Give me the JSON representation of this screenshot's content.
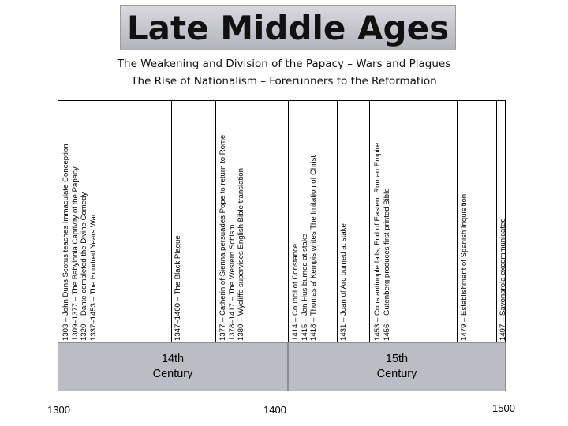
{
  "title": "Late Middle Ages",
  "subtitle": [
    "The Weakening and Division of the Papacy – Wars and Plagues",
    "The Rise of Nationalism – Forerunners to the Reformation"
  ],
  "events": [
    {
      "lines": [
        "1303 – John Duns Scotus teaches Immaculate Conception",
        "1309–1377 – The Babylonia Captivity of the Papacy",
        "1320 – Dante completed the Divine Comedy",
        "1337–1453 – The Hundred Years War"
      ]
    },
    {
      "lines": [
        "1347–1400 – The Black Plague"
      ]
    },
    {
      "lines": [
        "1377 – Catherin of Sienna persuades Pope to return to Rome",
        "1378–1417 – The Western Schism",
        "1380 – Wycliffe supervises English Bible translation"
      ]
    },
    {
      "lines": [
        "1414 – Council of Constance",
        "1415 – Jan Hus burned at stake",
        "1418 – Thomas a' Kempis writes The Imitation of Christ"
      ]
    },
    {
      "lines": [
        "1431 – Joan of Arc burned at stake"
      ]
    },
    {
      "lines": [
        "1453 – Constantinople falls; End of Eastern Roman Empire",
        "1456 – Gutenberg produces first printed Bible"
      ]
    },
    {
      "lines": [
        "1479 – Establishment of Spanish Inquisition"
      ]
    },
    {
      "lines": [
        "1497 – Savonarola excommunicated"
      ]
    }
  ],
  "centuries": [
    {
      "lines": [
        "14th",
        "Century"
      ]
    },
    {
      "lines": [
        "15th",
        "Century"
      ]
    }
  ],
  "axis": [
    "1300",
    "1400",
    "1500"
  ]
}
